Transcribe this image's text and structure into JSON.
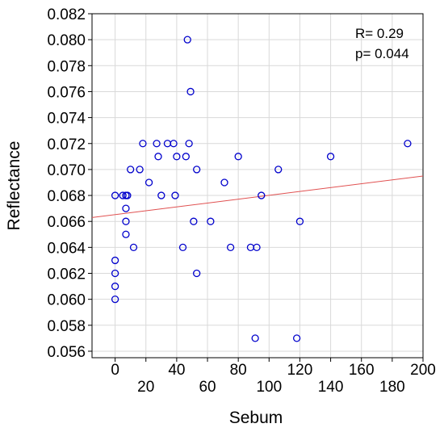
{
  "chart_data": {
    "type": "scatter",
    "title": "",
    "xlabel": "Sebum",
    "ylabel": "Reflectance",
    "xlim": [
      -15,
      200
    ],
    "ylim": [
      0.0555,
      0.082
    ],
    "x_ticks_upper": [
      "0",
      "40",
      "80",
      "120",
      "160",
      "200"
    ],
    "x_ticks_lower": [
      "20",
      "60",
      "100",
      "140",
      "180"
    ],
    "y_ticks": [
      "0.082",
      "0.080",
      "0.078",
      "0.076",
      "0.074",
      "0.072",
      "0.070",
      "0.068",
      "0.066",
      "0.064",
      "0.062",
      "0.060",
      "0.058",
      "0.056"
    ],
    "grid": true,
    "annotations": [
      "R= 0.29",
      "p= 0.044"
    ],
    "marker_color": "#0000cc",
    "line_color": "#e05050",
    "regression": {
      "x": [
        -15,
        200
      ],
      "y": [
        0.0663,
        0.0695
      ]
    },
    "points": [
      {
        "x": 0,
        "y": 0.068
      },
      {
        "x": 0,
        "y": 0.063
      },
      {
        "x": 0,
        "y": 0.062
      },
      {
        "x": 0,
        "y": 0.061
      },
      {
        "x": 0,
        "y": 0.06
      },
      {
        "x": 5,
        "y": 0.068
      },
      {
        "x": 7,
        "y": 0.068
      },
      {
        "x": 8,
        "y": 0.068
      },
      {
        "x": 7,
        "y": 0.067
      },
      {
        "x": 7,
        "y": 0.066
      },
      {
        "x": 7,
        "y": 0.065
      },
      {
        "x": 10,
        "y": 0.07
      },
      {
        "x": 12,
        "y": 0.064
      },
      {
        "x": 16,
        "y": 0.07
      },
      {
        "x": 18,
        "y": 0.072
      },
      {
        "x": 22,
        "y": 0.069
      },
      {
        "x": 27,
        "y": 0.072
      },
      {
        "x": 28,
        "y": 0.071
      },
      {
        "x": 30,
        "y": 0.068
      },
      {
        "x": 34,
        "y": 0.072
      },
      {
        "x": 38,
        "y": 0.072
      },
      {
        "x": 39,
        "y": 0.068
      },
      {
        "x": 40,
        "y": 0.071
      },
      {
        "x": 44,
        "y": 0.064
      },
      {
        "x": 46,
        "y": 0.071
      },
      {
        "x": 47,
        "y": 0.08
      },
      {
        "x": 48,
        "y": 0.072
      },
      {
        "x": 49,
        "y": 0.076
      },
      {
        "x": 51,
        "y": 0.066
      },
      {
        "x": 53,
        "y": 0.07
      },
      {
        "x": 53,
        "y": 0.062
      },
      {
        "x": 62,
        "y": 0.066
      },
      {
        "x": 71,
        "y": 0.069
      },
      {
        "x": 75,
        "y": 0.064
      },
      {
        "x": 80,
        "y": 0.071
      },
      {
        "x": 88,
        "y": 0.064
      },
      {
        "x": 92,
        "y": 0.064
      },
      {
        "x": 91,
        "y": 0.057
      },
      {
        "x": 95,
        "y": 0.068
      },
      {
        "x": 106,
        "y": 0.07
      },
      {
        "x": 118,
        "y": 0.057
      },
      {
        "x": 120,
        "y": 0.066
      },
      {
        "x": 140,
        "y": 0.071
      },
      {
        "x": 190,
        "y": 0.072
      }
    ]
  }
}
